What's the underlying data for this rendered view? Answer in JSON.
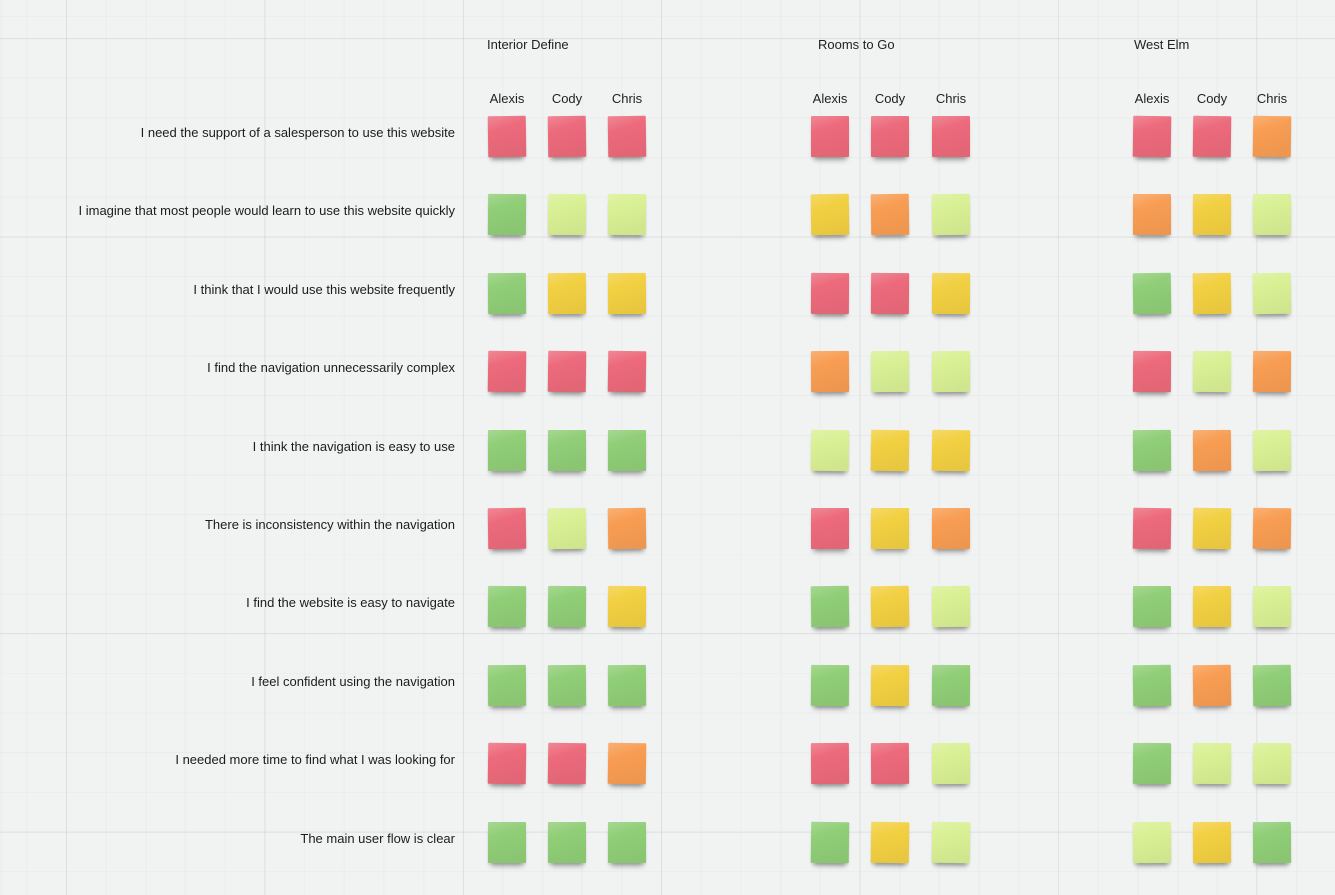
{
  "board": {
    "background_color": "#f1f2f2",
    "grid_line_color": "#e6e7e7"
  },
  "note_colors": {
    "red": "#ec6a7b",
    "orange": "#f89d53",
    "yellow": "#f2d042",
    "light-green": "#d9f094",
    "green": "#90ce77"
  },
  "statements": [
    "I need the support of a salesperson to use this website",
    "I imagine that most people would learn to use this website quickly",
    "I think that I would use this website frequently",
    "I find the navigation unnecessarily complex",
    "I think the navigation is easy to use",
    "There is inconsistency within the navigation",
    "I find the website is easy to navigate",
    "I feel confident using the navigation",
    "I needed more time to find what I was looking for",
    "The main user flow is clear"
  ],
  "groups": [
    {
      "name": "Interior Define",
      "members": [
        "Alexis",
        "Cody",
        "Chris"
      ],
      "notes": [
        [
          "red",
          "red",
          "red"
        ],
        [
          "green",
          "light-green",
          "light-green"
        ],
        [
          "green",
          "yellow",
          "yellow"
        ],
        [
          "red",
          "red",
          "red"
        ],
        [
          "green",
          "green",
          "green"
        ],
        [
          "red",
          "light-green",
          "orange"
        ],
        [
          "green",
          "green",
          "yellow"
        ],
        [
          "green",
          "green",
          "green"
        ],
        [
          "red",
          "red",
          "orange"
        ],
        [
          "green",
          "green",
          "green"
        ]
      ]
    },
    {
      "name": "Rooms to Go",
      "members": [
        "Alexis",
        "Cody",
        "Chris"
      ],
      "notes": [
        [
          "red",
          "red",
          "red"
        ],
        [
          "yellow",
          "orange",
          "light-green"
        ],
        [
          "red",
          "red",
          "yellow"
        ],
        [
          "orange",
          "light-green",
          "light-green"
        ],
        [
          "light-green",
          "yellow",
          "yellow"
        ],
        [
          "red",
          "yellow",
          "orange"
        ],
        [
          "green",
          "yellow",
          "light-green"
        ],
        [
          "green",
          "yellow",
          "green"
        ],
        [
          "red",
          "red",
          "light-green"
        ],
        [
          "green",
          "yellow",
          "light-green"
        ]
      ]
    },
    {
      "name": "West Elm",
      "members": [
        "Alexis",
        "Cody",
        "Chris"
      ],
      "notes": [
        [
          "red",
          "red",
          "orange"
        ],
        [
          "orange",
          "yellow",
          "light-green"
        ],
        [
          "green",
          "yellow",
          "light-green"
        ],
        [
          "red",
          "light-green",
          "orange"
        ],
        [
          "green",
          "orange",
          "light-green"
        ],
        [
          "red",
          "yellow",
          "orange"
        ],
        [
          "green",
          "yellow",
          "light-green"
        ],
        [
          "green",
          "orange",
          "green"
        ],
        [
          "green",
          "light-green",
          "light-green"
        ],
        [
          "light-green",
          "yellow",
          "green"
        ]
      ]
    }
  ]
}
